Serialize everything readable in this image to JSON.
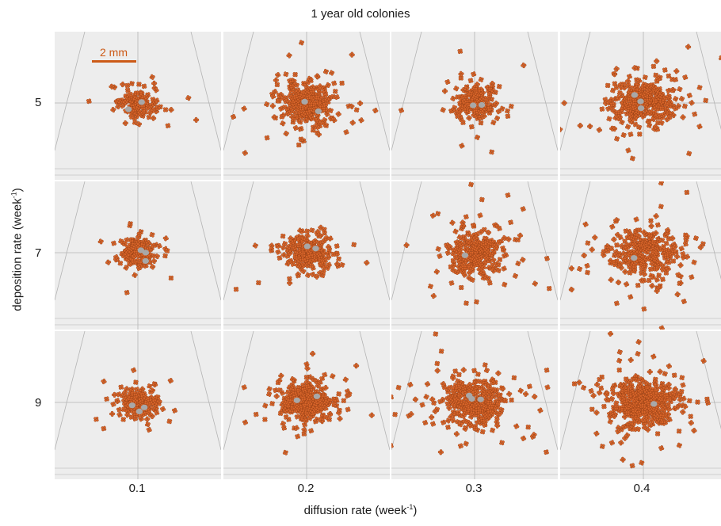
{
  "title": "1 year old colonies",
  "y_axis": {
    "label": "deposition rate (week",
    "unit_exp": "-1",
    "suffix": ")",
    "ticks": [
      "5",
      "7",
      "9"
    ]
  },
  "x_axis": {
    "label": "diffusion rate (week",
    "unit_exp": "-1",
    "suffix": ")",
    "ticks": [
      "0.1",
      "0.2",
      "0.3",
      "0.4"
    ]
  },
  "scale_bar": {
    "label": "2 mm"
  },
  "colors": {
    "polyp": "#d9652a",
    "polyp_dark": "#8a3a12",
    "parent": "#a8a8a8",
    "panel_bg": "#ededed",
    "scale": "#cc5a17"
  },
  "panels": [
    {
      "deposition": "5",
      "diffusion": "0.1",
      "spread": 0.75,
      "count": 140
    },
    {
      "deposition": "5",
      "diffusion": "0.2",
      "spread": 1.15,
      "count": 300
    },
    {
      "deposition": "5",
      "diffusion": "0.3",
      "spread": 1.0,
      "count": 180
    },
    {
      "deposition": "5",
      "diffusion": "0.4",
      "spread": 1.25,
      "count": 330
    },
    {
      "deposition": "7",
      "diffusion": "0.1",
      "spread": 0.75,
      "count": 160
    },
    {
      "deposition": "7",
      "diffusion": "0.2",
      "spread": 0.95,
      "count": 240
    },
    {
      "deposition": "7",
      "diffusion": "0.3",
      "spread": 1.1,
      "count": 300
    },
    {
      "deposition": "7",
      "diffusion": "0.4",
      "spread": 1.25,
      "count": 320
    },
    {
      "deposition": "9",
      "diffusion": "0.1",
      "spread": 0.75,
      "count": 200
    },
    {
      "deposition": "9",
      "diffusion": "0.2",
      "spread": 0.95,
      "count": 380
    },
    {
      "deposition": "9",
      "diffusion": "0.3",
      "spread": 1.15,
      "count": 350
    },
    {
      "deposition": "9",
      "diffusion": "0.4",
      "spread": 1.3,
      "count": 440
    }
  ]
}
